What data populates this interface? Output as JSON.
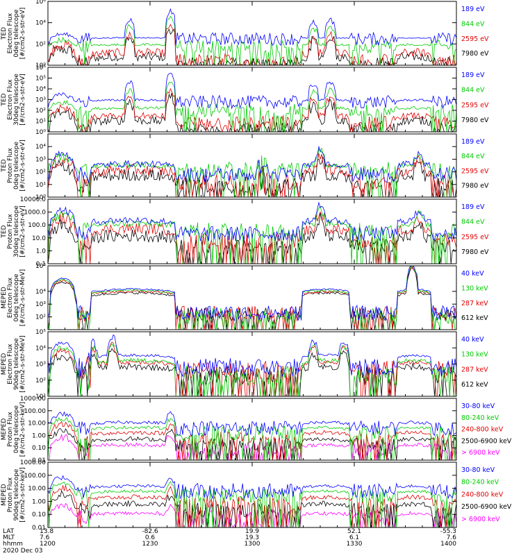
{
  "chart_data": [
    {
      "type": "line",
      "panel": 1,
      "ylabel_lines": [
        "TED",
        "Electron Flux",
        "0deg telescope",
        "[#/cm2-s-str-eV]"
      ],
      "yscale": "log",
      "ylim": [
        1,
        1000000
      ],
      "yticks": [
        {
          "v": 1,
          "l": "10⁰"
        },
        {
          "v": 100,
          "l": "10²"
        },
        {
          "v": 10000,
          "l": "10⁴"
        },
        {
          "v": 1000000,
          "l": "10⁶"
        }
      ],
      "series": [
        {
          "name": "7980 eV",
          "color": "#000000",
          "base": 30,
          "spread": 0.6,
          "quiet": 1.5
        },
        {
          "name": "2595 eV",
          "color": "#e00000",
          "base": 80,
          "spread": 0.5,
          "quiet": 3
        },
        {
          "name": "844 eV",
          "color": "#00cc00",
          "base": 150,
          "spread": 0.4,
          "quiet": 60
        },
        {
          "name": "189 eV",
          "color": "#0000ff",
          "base": 500,
          "spread": 0.3,
          "quiet": 300
        }
      ],
      "events": [
        {
          "x": 1224,
          "peak": 60
        },
        {
          "x": 1236,
          "peak": 400
        },
        {
          "x": 1318,
          "peak": 30
        },
        {
          "x": 1323,
          "peak": 60
        }
      ]
    },
    {
      "type": "line",
      "panel": 2,
      "ylabel_lines": [
        "TED",
        "Electron Flux",
        "30deg telescope",
        "[#/cm2-s-str-eV]"
      ],
      "yscale": "log",
      "ylim": [
        1,
        1000000
      ],
      "yticks": [
        {
          "v": 1,
          "l": "10⁰"
        },
        {
          "v": 10,
          "l": "10¹"
        },
        {
          "v": 100,
          "l": "10²"
        },
        {
          "v": 1000,
          "l": "10³"
        },
        {
          "v": 10000,
          "l": "10⁴"
        },
        {
          "v": 100000,
          "l": "10⁵"
        },
        {
          "v": 1000000,
          "l": "10⁶"
        }
      ],
      "series": [
        {
          "name": "7980 eV",
          "color": "#000000",
          "base": 60,
          "spread": 0.5,
          "quiet": 2
        },
        {
          "name": "2595 eV",
          "color": "#e00000",
          "base": 150,
          "spread": 0.4,
          "quiet": 8
        },
        {
          "name": "844 eV",
          "color": "#00cc00",
          "base": 400,
          "spread": 0.4,
          "quiet": 100
        },
        {
          "name": "189 eV",
          "color": "#0000ff",
          "base": 2000,
          "spread": 0.3,
          "quiet": 600
        }
      ],
      "events": [
        {
          "x": 1224,
          "peak": 60
        },
        {
          "x": 1236,
          "peak": 300
        },
        {
          "x": 1318,
          "peak": 40
        },
        {
          "x": 1323,
          "peak": 60
        }
      ]
    },
    {
      "type": "line",
      "panel": 3,
      "ylabel_lines": [
        "TED",
        "Proton Flux",
        "0deg telescope",
        "[#/cm2-s-str-eV]"
      ],
      "yscale": "log",
      "ylim": [
        1,
        100000
      ],
      "yticks": [
        {
          "v": 1,
          "l": "10⁰"
        },
        {
          "v": 10,
          "l": "10¹"
        },
        {
          "v": 100,
          "l": "10²"
        },
        {
          "v": 1000,
          "l": "10³"
        },
        {
          "v": 10000,
          "l": "10⁴"
        }
      ],
      "series": [
        {
          "name": "7980 eV",
          "color": "#000000",
          "base": 300,
          "spread": 0.6,
          "quiet": 8
        },
        {
          "name": "2595 eV",
          "color": "#e00000",
          "base": 800,
          "spread": 0.5,
          "quiet": 15
        },
        {
          "name": "844 eV",
          "color": "#00cc00",
          "base": 1200,
          "spread": 0.4,
          "quiet": 150
        },
        {
          "name": "189 eV",
          "color": "#0000ff",
          "base": 2500,
          "spread": 0.3,
          "quiet": 60
        }
      ],
      "events": [
        {
          "x": 1303,
          "peak": 8
        },
        {
          "x": 1320,
          "peak": 12
        },
        {
          "x": 1349,
          "peak": 6
        }
      ]
    },
    {
      "type": "line",
      "panel": 4,
      "ylabel_lines": [
        "TED",
        "Proton Flux",
        "30deg telescope",
        "[#/cm2-s-str-eV]"
      ],
      "yscale": "log",
      "ylim": [
        0.1,
        10000
      ],
      "yticks": [
        {
          "v": 0.1,
          "l": "0.1"
        },
        {
          "v": 1,
          "l": "1.0"
        },
        {
          "v": 10,
          "l": "10.0"
        },
        {
          "v": 100,
          "l": "100.0"
        },
        {
          "v": 1000,
          "l": "1000.0"
        },
        {
          "v": 10000,
          "l": "10000.0"
        }
      ],
      "series": [
        {
          "name": "7980 eV",
          "color": "#000000",
          "base": 80,
          "spread": 0.6,
          "quiet": 2
        },
        {
          "name": "2595 eV",
          "color": "#e00000",
          "base": 300,
          "spread": 0.5,
          "quiet": 6
        },
        {
          "name": "844 eV",
          "color": "#00cc00",
          "base": 600,
          "spread": 0.4,
          "quiet": 40
        },
        {
          "name": "189 eV",
          "color": "#0000ff",
          "base": 1500,
          "spread": 0.3,
          "quiet": 20
        }
      ],
      "events": [
        {
          "x": 1320,
          "peak": 15
        },
        {
          "x": 1349,
          "peak": 6
        }
      ]
    },
    {
      "type": "line",
      "panel": 5,
      "ylabel_lines": [
        "MEPED",
        "Electron Flux",
        "0deg telescope",
        "[#/cm2-s-str-MeV]"
      ],
      "yscale": "log",
      "ylim": [
        10,
        1000000
      ],
      "yticks": [
        {
          "v": 100,
          "l": "10²"
        },
        {
          "v": 1000,
          "l": "10³"
        },
        {
          "v": 10000,
          "l": "10⁴"
        },
        {
          "v": 1000000,
          "l": "10⁶"
        }
      ],
      "series": [
        {
          "name": "612 keV",
          "color": "#000000",
          "base": 50000,
          "spread": 0.1,
          "quiet": 150
        },
        {
          "name": "287 keV",
          "color": "#e00000",
          "base": 65000,
          "spread": 0.1,
          "quiet": 180
        },
        {
          "name": "130 keV",
          "color": "#00cc00",
          "base": 80000,
          "spread": 0.08,
          "quiet": 120
        },
        {
          "name": "40 keV",
          "color": "#0000ff",
          "base": 100000,
          "spread": 0.06,
          "quiet": 200
        }
      ],
      "events": [
        {
          "x": 1347,
          "peak": 80
        }
      ]
    },
    {
      "type": "line",
      "panel": 6,
      "ylabel_lines": [
        "MEPED",
        "Electron Flux",
        "90deg telescope",
        "[#/cm2-s-str-MeV]"
      ],
      "yscale": "log",
      "ylim": [
        10,
        100000
      ],
      "yticks": [
        {
          "v": 10,
          "l": "10¹"
        },
        {
          "v": 100,
          "l": "10²"
        },
        {
          "v": 1000,
          "l": "10³"
        },
        {
          "v": 10000,
          "l": "10⁴"
        },
        {
          "v": 100000,
          "l": "10⁵"
        }
      ],
      "series": [
        {
          "name": "612 keV",
          "color": "#000000",
          "base": 3000,
          "spread": 0.3,
          "quiet": 200
        },
        {
          "name": "287 keV",
          "color": "#e00000",
          "base": 6000,
          "spread": 0.2,
          "quiet": 400
        },
        {
          "name": "130 keV",
          "color": "#00cc00",
          "base": 10000,
          "spread": 0.15,
          "quiet": 200
        },
        {
          "name": "40 keV",
          "color": "#0000ff",
          "base": 20000,
          "spread": 0.1,
          "quiet": 600
        }
      ],
      "events": [
        {
          "x": 1213,
          "peak": 10
        },
        {
          "x": 1219,
          "peak": 15
        },
        {
          "x": 1318,
          "peak": 8
        },
        {
          "x": 1327,
          "peak": 12
        },
        {
          "x": 1396,
          "peak": 8
        }
      ]
    },
    {
      "type": "line",
      "panel": 7,
      "ylabel_lines": [
        "MEPED",
        "Proton Flux",
        "0deg telescope",
        "[#/cm2-s-str-keV]"
      ],
      "yscale": "log",
      "ylim": [
        0.01,
        1000
      ],
      "yticks": [
        {
          "v": 0.01,
          "l": "0.01"
        },
        {
          "v": 0.1,
          "l": "0.10"
        },
        {
          "v": 1,
          "l": "1.00"
        },
        {
          "v": 10,
          "l": "10.00"
        },
        {
          "v": 100,
          "l": "100.00"
        },
        {
          "v": 1000,
          "l": "1000.00"
        }
      ],
      "series": [
        {
          "name": "> 6900 keV",
          "color": "#ff00ff",
          "base": 0.6,
          "spread": 0.3,
          "quiet": 0.08
        },
        {
          "name": "2500-6900 keV",
          "color": "#000000",
          "base": 2,
          "spread": 0.3,
          "quiet": 0.2
        },
        {
          "name": "240-800 keV",
          "color": "#e00000",
          "base": 8,
          "spread": 0.25,
          "quiet": 0.5
        },
        {
          "name": "80-240 keV",
          "color": "#00cc00",
          "base": 20,
          "spread": 0.2,
          "quiet": 1.5
        },
        {
          "name": "30-80 keV",
          "color": "#0000ff",
          "base": 50,
          "spread": 0.2,
          "quiet": 4
        }
      ],
      "events": [
        {
          "x": 1236,
          "peak": 6
        }
      ]
    },
    {
      "type": "line",
      "panel": 8,
      "ylabel_lines": [
        "MEPED",
        "Proton Flux",
        "90deg telescope",
        "[#/cm2-s-str-keV]"
      ],
      "yscale": "log",
      "ylim": [
        0.01,
        1000
      ],
      "yticks": [
        {
          "v": 0.01,
          "l": "0.01"
        },
        {
          "v": 0.1,
          "l": "0.10"
        },
        {
          "v": 1,
          "l": "1.00"
        },
        {
          "v": 10,
          "l": "10.00"
        },
        {
          "v": 100,
          "l": "100.00"
        },
        {
          "v": 1000,
          "l": "1000.00"
        }
      ],
      "series": [
        {
          "name": "> 6900 keV",
          "color": "#ff00ff",
          "base": 0.4,
          "spread": 0.3,
          "quiet": 0.06
        },
        {
          "name": "2500-6900 keV",
          "color": "#000000",
          "base": 3,
          "spread": 0.3,
          "quiet": 0.2
        },
        {
          "name": "240-800 keV",
          "color": "#e00000",
          "base": 10,
          "spread": 0.25,
          "quiet": 0.6
        },
        {
          "name": "80-240 keV",
          "color": "#00cc00",
          "base": 25,
          "spread": 0.2,
          "quiet": 2.5
        },
        {
          "name": "30-80 keV",
          "color": "#0000ff",
          "base": 60,
          "spread": 0.2,
          "quiet": 6
        }
      ],
      "events": [
        {
          "x": 1236,
          "peak": 4
        }
      ]
    }
  ],
  "xaxis": {
    "xlim": [
      1200,
      1400
    ],
    "tick_times": [
      1200,
      1230,
      1300,
      1330,
      1400
    ],
    "minor_times": [
      1205,
      1210,
      1215,
      1220,
      1225,
      1235,
      1240,
      1245,
      1250,
      1255,
      1305,
      1310,
      1315,
      1320,
      1325,
      1335,
      1340,
      1345,
      1350,
      1355
    ],
    "row_labels": [
      "LAT",
      "MLT",
      "hhmm"
    ],
    "lat": [
      "13.8",
      "-82.6",
      "19.9",
      "52.1",
      "-55.3"
    ],
    "mlt": [
      "7.6",
      "0.6",
      "19.3",
      "6.1",
      "7.6"
    ],
    "hhmm": [
      "1200",
      "1230",
      "1300",
      "1330",
      "1400"
    ],
    "date": "2020 Dec 03"
  },
  "regions": [
    {
      "x0": 1200.5,
      "x1": 1208.5,
      "kind": "belt"
    },
    {
      "x0": 1212.5,
      "x1": 1237.5,
      "kind": "cap"
    },
    {
      "x0": 1314.5,
      "x1": 1328.5,
      "kind": "cap"
    },
    {
      "x0": 1342.5,
      "x1": 1352.5,
      "kind": "cap"
    }
  ]
}
